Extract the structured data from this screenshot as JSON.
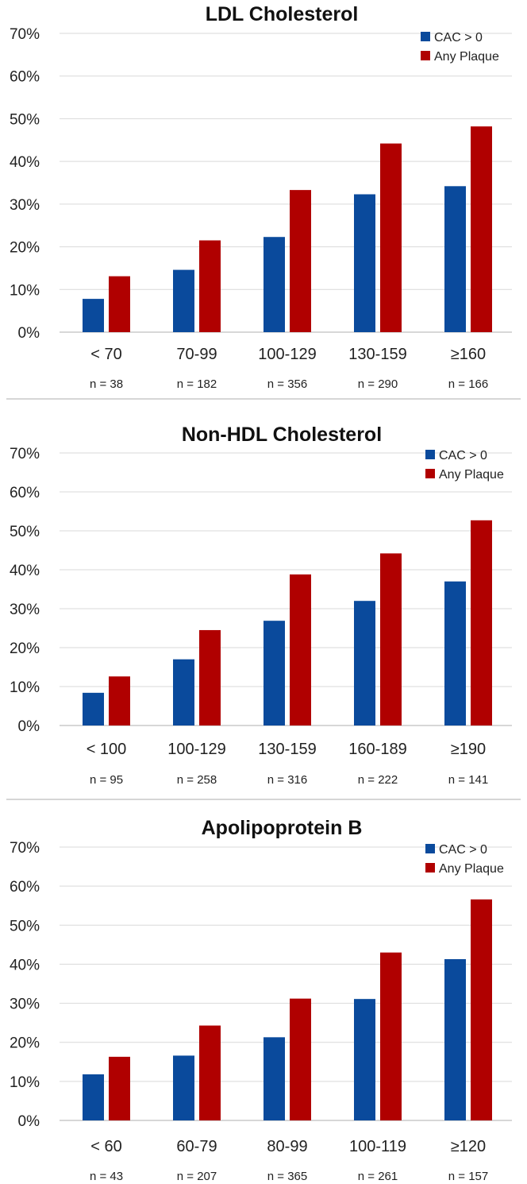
{
  "colors": {
    "cac": "#0a4a9c",
    "plaque": "#b00000"
  },
  "chart_data": [
    {
      "type": "bar",
      "title": "LDL Cholesterol",
      "categories": [
        "< 70",
        "70-99",
        "100-129",
        "130-159",
        "≥160"
      ],
      "n_labels": [
        "n = 38",
        "n = 182",
        "n = 356",
        "n = 290",
        "n = 166"
      ],
      "series": [
        {
          "name": "CAC > 0",
          "values": [
            7.8,
            14.6,
            22.3,
            32.3,
            34.2
          ]
        },
        {
          "name": "Any Plaque",
          "values": [
            13.1,
            21.5,
            33.3,
            44.2,
            48.2
          ]
        }
      ],
      "ylim": [
        0,
        70
      ],
      "yticks": [
        "0%",
        "10%",
        "20%",
        "30%",
        "40%",
        "50%",
        "60%",
        "70%"
      ],
      "legend": "top-right",
      "grid": true
    },
    {
      "type": "bar",
      "title": "Non-HDL Cholesterol",
      "categories": [
        "< 100",
        "100-129",
        "130-159",
        "160-189",
        "≥190"
      ],
      "n_labels": [
        "n = 95",
        "n = 258",
        "n = 316",
        "n = 222",
        "n = 141"
      ],
      "series": [
        {
          "name": "CAC > 0",
          "values": [
            8.4,
            17.0,
            26.9,
            32.0,
            37.0
          ]
        },
        {
          "name": "Any Plaque",
          "values": [
            12.6,
            24.5,
            38.8,
            44.2,
            52.7
          ]
        }
      ],
      "ylim": [
        0,
        70
      ],
      "yticks": [
        "0%",
        "10%",
        "20%",
        "30%",
        "40%",
        "50%",
        "60%",
        "70%"
      ],
      "legend": "top-right",
      "grid": true
    },
    {
      "type": "bar",
      "title": "Apolipoprotein B",
      "categories": [
        "< 60",
        "60-79",
        "80-99",
        "100-119",
        "≥120"
      ],
      "n_labels": [
        "n = 43",
        "n = 207",
        "n = 365",
        "n = 261",
        "n = 157"
      ],
      "series": [
        {
          "name": "CAC > 0",
          "values": [
            11.8,
            16.6,
            21.3,
            31.1,
            41.3
          ]
        },
        {
          "name": "Any Plaque",
          "values": [
            16.3,
            24.3,
            31.2,
            43.0,
            56.6
          ]
        }
      ],
      "ylim": [
        0,
        70
      ],
      "yticks": [
        "0%",
        "10%",
        "20%",
        "30%",
        "40%",
        "50%",
        "60%",
        "70%"
      ],
      "legend": "top-right",
      "grid": true
    }
  ]
}
